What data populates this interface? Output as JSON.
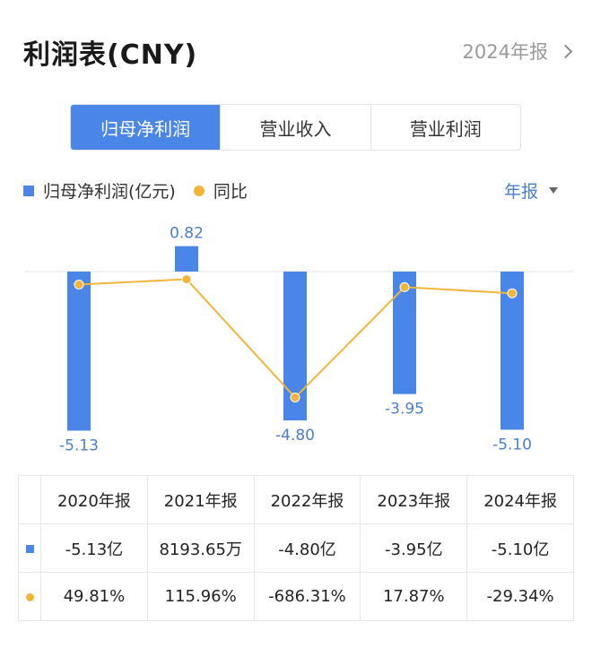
{
  "header": {
    "title": "利润表(CNY)",
    "period_link": "2024年报"
  },
  "tabs": [
    {
      "label": "归母净利润",
      "active": true
    },
    {
      "label": "营业收入",
      "active": false
    },
    {
      "label": "营业利润",
      "active": false
    }
  ],
  "legend": {
    "bar_label": "归母净利润(亿元)",
    "line_label": "同比"
  },
  "period_select": {
    "label": "年报"
  },
  "colors": {
    "bar": "#4a86e8",
    "line": "#f2b53a",
    "positive": "#e05a4f",
    "negative": "#3aa66a",
    "label": "#4a7fd0"
  },
  "chart_data": {
    "type": "bar",
    "categories": [
      "2020年报",
      "2021年报",
      "2022年报",
      "2023年报",
      "2024年报"
    ],
    "series": [
      {
        "name": "归母净利润(亿元)",
        "type": "bar",
        "values": [
          -5.13,
          0.82,
          -4.8,
          -3.95,
          -5.1
        ],
        "labels": [
          "-5.13",
          "0.82",
          "-4.80",
          "-3.95",
          "-5.10"
        ]
      },
      {
        "name": "同比",
        "type": "line",
        "values": [
          49.81,
          115.96,
          -686.31,
          17.87,
          -29.34
        ]
      }
    ],
    "ylim": [
      -5.13,
      0.82
    ],
    "grid": false,
    "legend": "top-left"
  },
  "table": {
    "headers": [
      "2020年报",
      "2021年报",
      "2022年报",
      "2023年报",
      "2024年报"
    ],
    "profit_row": [
      "-5.13亿",
      "8193.65万",
      "-4.80亿",
      "-3.95亿",
      "-5.10亿"
    ],
    "yoy_row": [
      "49.81%",
      "115.96%",
      "-686.31%",
      "17.87%",
      "-29.34%"
    ]
  }
}
